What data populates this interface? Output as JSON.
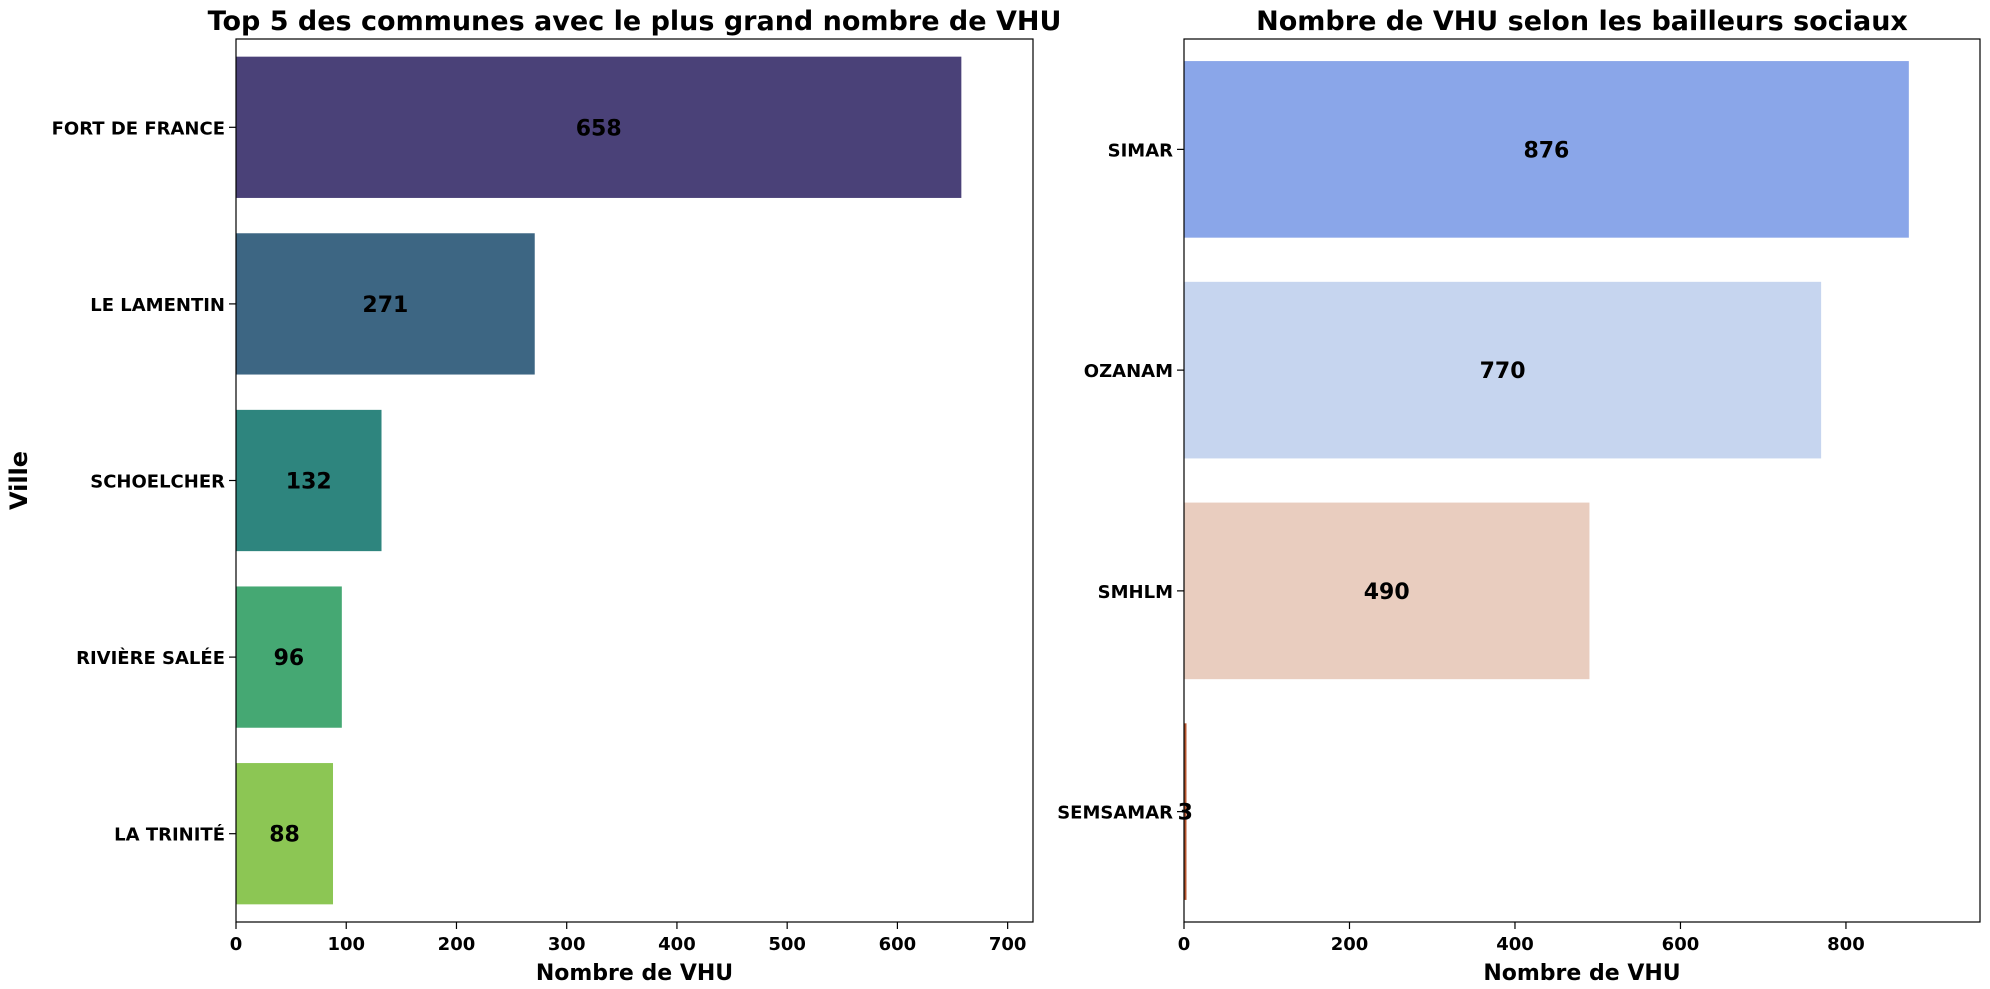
{
  "chart_data": [
    {
      "type": "bar",
      "orientation": "horizontal",
      "title": "Top 5 des communes avec le plus grand nombre de VHU",
      "xlabel": "Nombre de VHU",
      "ylabel": "Ville",
      "categories": [
        "FORT DE FRANCE",
        "LE LAMENTIN",
        "SCHOELCHER",
        "RIVIÈRE SALÉE",
        "LA TRINITÉ"
      ],
      "values": [
        658,
        271,
        132,
        96,
        88
      ],
      "colors": [
        "#4a4178",
        "#3d6683",
        "#2e857e",
        "#45a873",
        "#8cc654"
      ],
      "xlim": [
        0,
        723
      ],
      "xticks": [
        0,
        100,
        200,
        300,
        400,
        500,
        600,
        700
      ],
      "grid": false
    },
    {
      "type": "bar",
      "orientation": "horizontal",
      "title": "Nombre de VHU selon les bailleurs sociaux",
      "xlabel": "Nombre de VHU",
      "ylabel": "",
      "categories": [
        "SIMAR",
        "OZANAM",
        "SMHLM",
        "SEMSAMAR"
      ],
      "values": [
        876,
        770,
        490,
        3
      ],
      "colors": [
        "#8aa6e9",
        "#c6d5ef",
        "#e9cdbf",
        "#b6552f"
      ],
      "xlim": [
        0,
        962
      ],
      "xticks": [
        0,
        200,
        400,
        600,
        800
      ],
      "grid": false
    }
  ]
}
